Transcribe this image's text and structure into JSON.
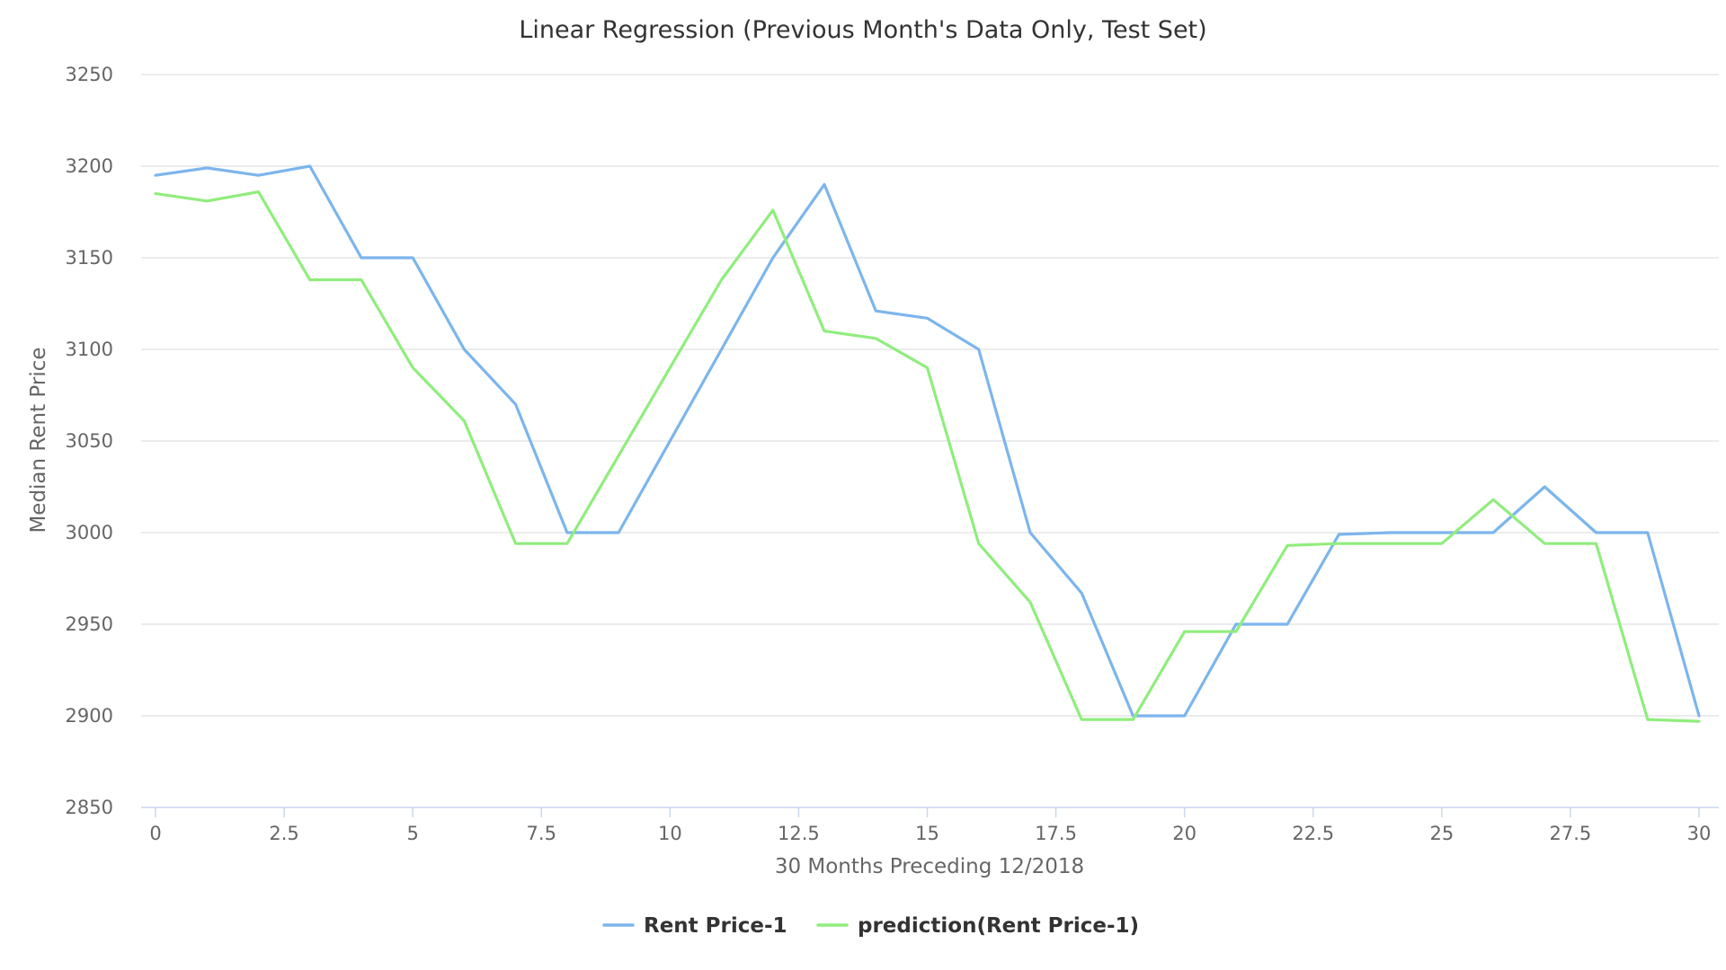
{
  "chart_data": {
    "type": "line",
    "title": "Linear Regression (Previous Month's Data Only, Test Set)",
    "xlabel": "30 Months Preceding 12/2018",
    "ylabel": "Median Rent Price",
    "xlim": [
      0,
      30
    ],
    "ylim": [
      2850,
      3250
    ],
    "x_ticks": [
      0,
      2.5,
      5,
      7.5,
      10,
      12.5,
      15,
      17.5,
      20,
      22.5,
      25,
      27.5,
      30
    ],
    "x_tick_labels": [
      "0",
      "2.5",
      "5",
      "7.5",
      "10",
      "12.5",
      "15",
      "17.5",
      "20",
      "22.5",
      "25",
      "27.5",
      "30"
    ],
    "y_ticks": [
      2850,
      2900,
      2950,
      3000,
      3050,
      3100,
      3150,
      3200,
      3250
    ],
    "y_tick_labels": [
      "2850",
      "2900",
      "2950",
      "3000",
      "3050",
      "3100",
      "3150",
      "3200",
      "3250"
    ],
    "grid": "horizontal",
    "legend_position": "bottom-center",
    "x": [
      0,
      1,
      2,
      3,
      4,
      5,
      6,
      7,
      8,
      9,
      10,
      11,
      12,
      13,
      14,
      15,
      16,
      17,
      18,
      19,
      20,
      21,
      22,
      23,
      24,
      25,
      26,
      27,
      28,
      29,
      30
    ],
    "series": [
      {
        "name": "Rent Price-1",
        "color": "#7cb5ec",
        "values": [
          3195,
          3199,
          3195,
          3200,
          3150,
          3150,
          3100,
          3070,
          3000,
          3000,
          3050,
          3100,
          3150,
          3190,
          3121,
          3117,
          3100,
          3000,
          2967,
          2900,
          2900,
          2950,
          2950,
          2999,
          3000,
          3000,
          3000,
          3025,
          3000,
          3000,
          2900
        ]
      },
      {
        "name": "prediction(Rent Price-1)",
        "color": "#90ed7d",
        "values": [
          3185,
          3181,
          3186,
          3138,
          3138,
          3090,
          3061,
          2994,
          2994,
          3042,
          3090,
          3138,
          3176,
          3110,
          3106,
          3090,
          2994,
          2962,
          2898,
          2898,
          2946,
          2946,
          2993,
          2994,
          2994,
          2994,
          3018,
          2994,
          2994,
          2898,
          2897
        ]
      }
    ]
  }
}
